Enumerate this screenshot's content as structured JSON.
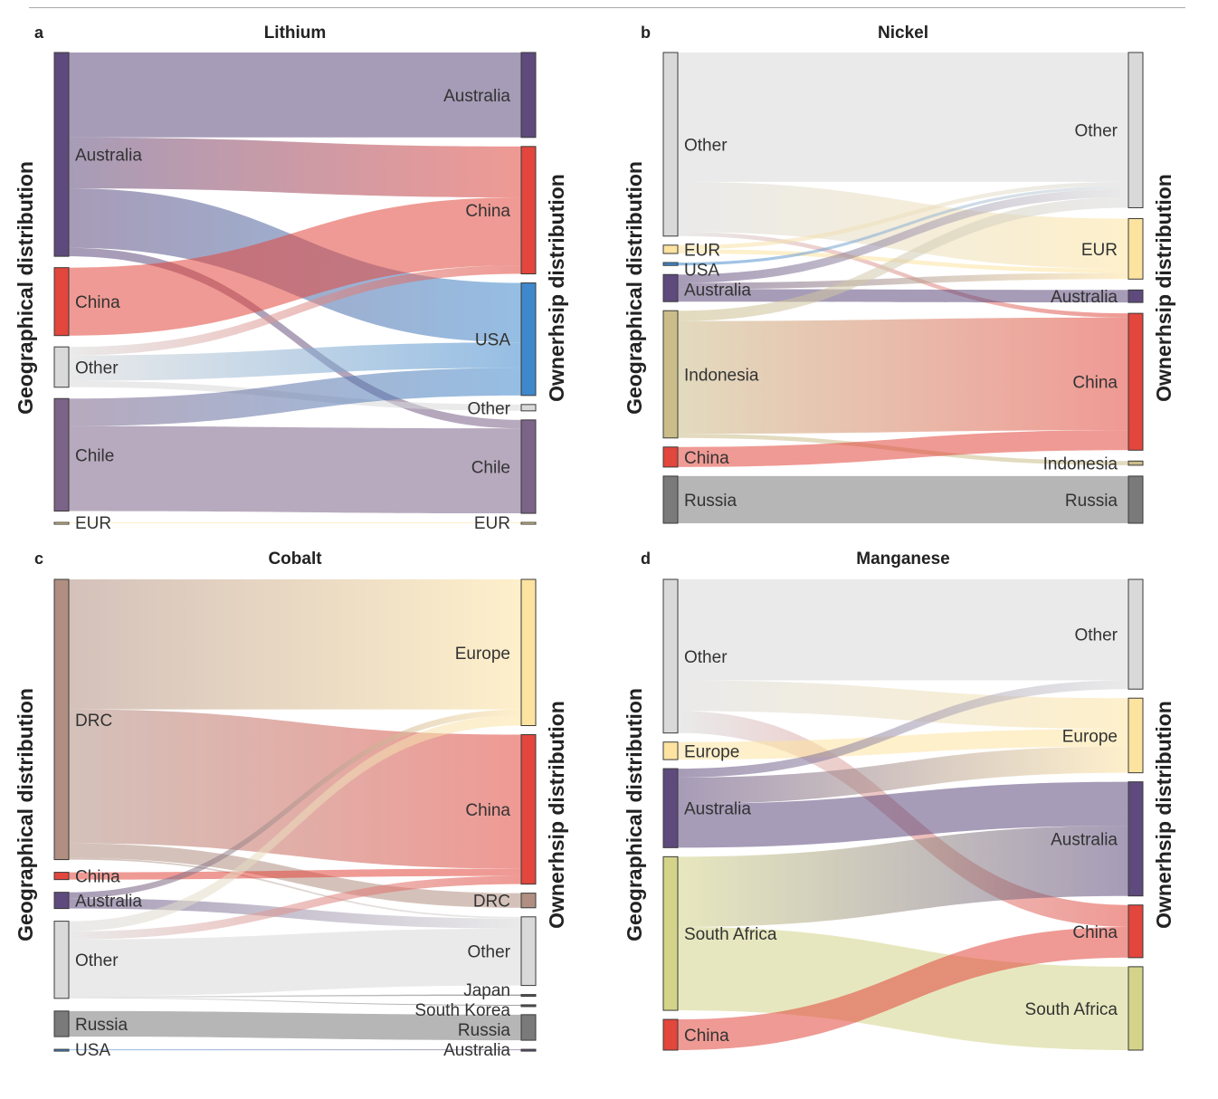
{
  "figure": {
    "left_axis_label": "Geographical distribution",
    "right_axis_label": "Ownerhsip distribution"
  },
  "chart_data": [
    {
      "type": "sankey",
      "panel": "a",
      "title": "Lithium",
      "xlabel_left": "Geographical distribution",
      "xlabel_right": "Ownerhsip distribution",
      "units": "approx. % of total",
      "sources": [
        {
          "id": "Australia",
          "label": "Australia",
          "color": "#5e4a7c"
        },
        {
          "id": "China",
          "label": "China",
          "color": "#e2463c"
        },
        {
          "id": "Other",
          "label": "Other",
          "color": "#d9d9d9"
        },
        {
          "id": "Chile",
          "label": "Chile",
          "color": "#7c6388"
        },
        {
          "id": "EUR",
          "label": "EUR",
          "color": "#fde3a0"
        }
      ],
      "targets": [
        {
          "id": "Australia",
          "label": "Australia",
          "color": "#5e4a7c"
        },
        {
          "id": "China",
          "label": "China",
          "color": "#e2463c"
        },
        {
          "id": "USA",
          "label": "USA",
          "color": "#3f88cc"
        },
        {
          "id": "Other",
          "label": "Other",
          "color": "#d9d9d9"
        },
        {
          "id": "Chile",
          "label": "Chile",
          "color": "#7c6388"
        },
        {
          "id": "EUR",
          "label": "EUR",
          "color": "#fde3a0"
        }
      ],
      "flows": [
        {
          "from": "Australia",
          "to": "Australia",
          "value": 20
        },
        {
          "from": "Australia",
          "to": "China",
          "value": 12
        },
        {
          "from": "Australia",
          "to": "USA",
          "value": 14
        },
        {
          "from": "Australia",
          "to": "Chile",
          "value": 2
        },
        {
          "from": "China",
          "to": "China",
          "value": 16
        },
        {
          "from": "Other",
          "to": "China",
          "value": 2
        },
        {
          "from": "Other",
          "to": "USA",
          "value": 6
        },
        {
          "from": "Other",
          "to": "Other",
          "value": 1.5
        },
        {
          "from": "Chile",
          "to": "USA",
          "value": 6.5
        },
        {
          "from": "Chile",
          "to": "Chile",
          "value": 20
        },
        {
          "from": "EUR",
          "to": "EUR",
          "value": 0.2
        }
      ]
    },
    {
      "type": "sankey",
      "panel": "b",
      "title": "Nickel",
      "xlabel_left": "Geographical distribution",
      "xlabel_right": "Ownerhsip distribution",
      "units": "approx. % of total",
      "sources": [
        {
          "id": "Other",
          "label": "Other",
          "color": "#d9d9d9"
        },
        {
          "id": "EUR",
          "label": "EUR",
          "color": "#fde3a0"
        },
        {
          "id": "USA",
          "label": "USA",
          "color": "#3f88cc"
        },
        {
          "id": "Australia",
          "label": "Australia",
          "color": "#5e4a7c"
        },
        {
          "id": "Indonesia",
          "label": "Indonesia",
          "color": "#cbbd8a"
        },
        {
          "id": "China",
          "label": "China",
          "color": "#e2463c"
        },
        {
          "id": "Russia",
          "label": "Russia",
          "color": "#7a7a7a"
        }
      ],
      "targets": [
        {
          "id": "Other",
          "label": "Other",
          "color": "#d9d9d9"
        },
        {
          "id": "EUR",
          "label": "EUR",
          "color": "#fde3a0"
        },
        {
          "id": "Australia",
          "label": "Australia",
          "color": "#5e4a7c"
        },
        {
          "id": "China",
          "label": "China",
          "color": "#e2463c"
        },
        {
          "id": "Indonesia",
          "label": "Indonesia",
          "color": "#cbbd8a"
        },
        {
          "id": "Russia",
          "label": "Russia",
          "color": "#7a7a7a"
        }
      ],
      "flows": [
        {
          "from": "Other",
          "to": "Other",
          "value": 31
        },
        {
          "from": "Other",
          "to": "EUR",
          "value": 12
        },
        {
          "from": "Other",
          "to": "China",
          "value": 1
        },
        {
          "from": "EUR",
          "to": "Other",
          "value": 1
        },
        {
          "from": "EUR",
          "to": "EUR",
          "value": 1
        },
        {
          "from": "USA",
          "to": "Other",
          "value": 0.7
        },
        {
          "from": "Australia",
          "to": "Other",
          "value": 2
        },
        {
          "from": "Australia",
          "to": "EUR",
          "value": 1.5
        },
        {
          "from": "Australia",
          "to": "Australia",
          "value": 3
        },
        {
          "from": "Indonesia",
          "to": "Other",
          "value": 2.5
        },
        {
          "from": "Indonesia",
          "to": "China",
          "value": 27
        },
        {
          "from": "Indonesia",
          "to": "Indonesia",
          "value": 1
        },
        {
          "from": "China",
          "to": "China",
          "value": 4.8
        },
        {
          "from": "Russia",
          "to": "Russia",
          "value": 11.3
        }
      ]
    },
    {
      "type": "sankey",
      "panel": "c",
      "title": "Cobalt",
      "xlabel_left": "Geographical distribution",
      "xlabel_right": "Ownerhsip distribution",
      "units": "approx. % of total",
      "sources": [
        {
          "id": "DRC",
          "label": "DRC",
          "color": "#b08f82"
        },
        {
          "id": "China",
          "label": "China",
          "color": "#e2463c"
        },
        {
          "id": "Australia",
          "label": "Australia",
          "color": "#5e4a7c"
        },
        {
          "id": "Other",
          "label": "Other",
          "color": "#d9d9d9"
        },
        {
          "id": "Russia",
          "label": "Russia",
          "color": "#7a7a7a"
        },
        {
          "id": "USA",
          "label": "USA",
          "color": "#3f88cc"
        }
      ],
      "targets": [
        {
          "id": "Europe",
          "label": "Europe",
          "color": "#fde3a0"
        },
        {
          "id": "China",
          "label": "China",
          "color": "#e2463c"
        },
        {
          "id": "DRC",
          "label": "DRC",
          "color": "#b08f82"
        },
        {
          "id": "Other",
          "label": "Other",
          "color": "#d9d9d9"
        },
        {
          "id": "Japan",
          "label": "Japan",
          "color": "#555555"
        },
        {
          "id": "South Korea",
          "label": "South Korea",
          "color": "#555555"
        },
        {
          "id": "Russia",
          "label": "Russia",
          "color": "#7a7a7a"
        },
        {
          "id": "Australia",
          "label": "Australia",
          "color": "#5e4a7c"
        }
      ],
      "flows": [
        {
          "from": "DRC",
          "to": "Europe",
          "value": 32
        },
        {
          "from": "DRC",
          "to": "China",
          "value": 33
        },
        {
          "from": "DRC",
          "to": "DRC",
          "value": 3.6
        },
        {
          "from": "DRC",
          "to": "Other",
          "value": 0.4
        },
        {
          "from": "China",
          "to": "China",
          "value": 1.8
        },
        {
          "from": "Australia",
          "to": "Europe",
          "value": 1.5
        },
        {
          "from": "Australia",
          "to": "Other",
          "value": 2.5
        },
        {
          "from": "Other",
          "to": "Europe",
          "value": 2.5
        },
        {
          "from": "Other",
          "to": "China",
          "value": 2
        },
        {
          "from": "Other",
          "to": "Other",
          "value": 14
        },
        {
          "from": "Other",
          "to": "Japan",
          "value": 0.3
        },
        {
          "from": "Other",
          "to": "South Korea",
          "value": 0.2
        },
        {
          "from": "Russia",
          "to": "Russia",
          "value": 6.3
        },
        {
          "from": "USA",
          "to": "Australia",
          "value": 0.2
        }
      ]
    },
    {
      "type": "sankey",
      "panel": "d",
      "title": "Manganese",
      "xlabel_left": "Geographical distribution",
      "xlabel_right": "Ownerhsip distribution",
      "units": "approx. % of total",
      "sources": [
        {
          "id": "Other",
          "label": "Other",
          "color": "#d9d9d9"
        },
        {
          "id": "Europe",
          "label": "Europe",
          "color": "#fde3a0"
        },
        {
          "id": "Australia",
          "label": "Australia",
          "color": "#5e4a7c"
        },
        {
          "id": "South Africa",
          "label": "South Africa",
          "color": "#d3d38a"
        },
        {
          "id": "China",
          "label": "China",
          "color": "#e2463c"
        }
      ],
      "targets": [
        {
          "id": "Other",
          "label": "Other",
          "color": "#d9d9d9"
        },
        {
          "id": "Europe",
          "label": "Europe",
          "color": "#fde3a0"
        },
        {
          "id": "Australia",
          "label": "Australia",
          "color": "#5e4a7c"
        },
        {
          "id": "China",
          "label": "China",
          "color": "#e2463c"
        },
        {
          "id": "South Africa",
          "label": "South Africa",
          "color": "#d3d38a"
        }
      ],
      "flows": [
        {
          "from": "Other",
          "to": "Other",
          "value": 23
        },
        {
          "from": "Other",
          "to": "Europe",
          "value": 7
        },
        {
          "from": "Other",
          "to": "China",
          "value": 5
        },
        {
          "from": "Europe",
          "to": "Europe",
          "value": 4
        },
        {
          "from": "Australia",
          "to": "Other",
          "value": 2
        },
        {
          "from": "Australia",
          "to": "Europe",
          "value": 6
        },
        {
          "from": "Australia",
          "to": "Australia",
          "value": 10
        },
        {
          "from": "South Africa",
          "to": "Australia",
          "value": 16
        },
        {
          "from": "South Africa",
          "to": "South Africa",
          "value": 19
        },
        {
          "from": "China",
          "to": "China",
          "value": 7
        }
      ]
    }
  ]
}
